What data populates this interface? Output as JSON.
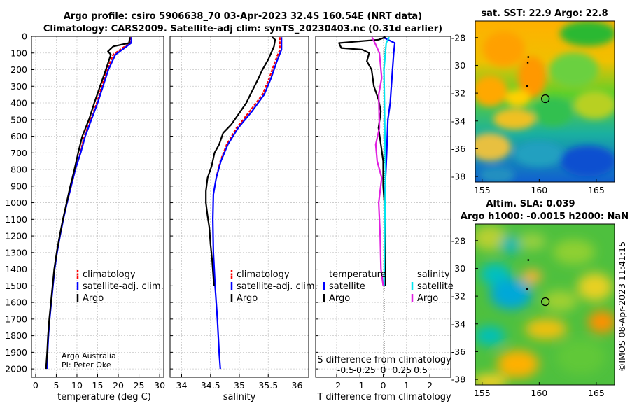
{
  "title_line1": "Argo profile: csiro 5906638_70 03-Apr-2023 32.4S 160.54E (NRT data)",
  "title_line2": "Climatology: CARS2009. Satellite-adj clim: synTS_20230403.nc (0.31d earlier)",
  "credit_line1": "Argo Australia",
  "credit_line2": "PI: Peter Oke",
  "watermark": "©IMOS 08-Apr-2023 11:41:15",
  "colors": {
    "argo": "#000000",
    "climatology": "#ff0000",
    "satellite": "#0000ff",
    "sat_salinity": "#00e5ee",
    "argo_salinity": "#e020e0",
    "zero_line": "#666666"
  },
  "chart_data": [
    {
      "id": "temperature",
      "type": "line",
      "xlabel": "temperature (deg C)",
      "ylabel": "",
      "xlim": [
        -1,
        31
      ],
      "ylim": [
        2050,
        0
      ],
      "xticks": [
        0,
        5,
        10,
        15,
        20,
        25,
        30
      ],
      "yticks": [
        0,
        100,
        200,
        300,
        400,
        500,
        600,
        700,
        800,
        900,
        1000,
        1100,
        1200,
        1300,
        1400,
        1500,
        1600,
        1700,
        1800,
        1900,
        2000
      ],
      "grid": true,
      "legend": [
        "climatology",
        "satellite-adj. clim.",
        "Argo"
      ],
      "series": [
        {
          "name": "climatology",
          "color": "#ff0000",
          "points": [
            [
              23.0,
              5
            ],
            [
              22.9,
              40
            ],
            [
              21.0,
              70
            ],
            [
              18.8,
              110
            ],
            [
              17.3,
              200
            ],
            [
              16.0,
              300
            ],
            [
              14.8,
              400
            ],
            [
              13.3,
              500
            ],
            [
              11.8,
              600
            ],
            [
              10.8,
              700
            ],
            [
              9.6,
              800
            ],
            [
              8.6,
              900
            ],
            [
              7.6,
              1000
            ]
          ]
        },
        {
          "name": "satellite-adj. clim.",
          "color": "#0000ff",
          "points": [
            [
              23.2,
              5
            ],
            [
              23.1,
              40
            ],
            [
              21.5,
              70
            ],
            [
              19.3,
              110
            ],
            [
              17.6,
              200
            ],
            [
              16.3,
              300
            ],
            [
              15.0,
              400
            ],
            [
              13.5,
              500
            ],
            [
              12.0,
              600
            ],
            [
              10.9,
              700
            ],
            [
              9.6,
              800
            ],
            [
              8.6,
              900
            ],
            [
              7.6,
              1000
            ],
            [
              6.7,
              1100
            ],
            [
              5.9,
              1200
            ],
            [
              5.2,
              1300
            ],
            [
              4.6,
              1400
            ],
            [
              4.2,
              1500
            ],
            [
              3.8,
              1600
            ],
            [
              3.4,
              1700
            ],
            [
              3.1,
              1800
            ],
            [
              2.9,
              1900
            ],
            [
              2.7,
              2000
            ]
          ]
        },
        {
          "name": "Argo",
          "color": "#000000",
          "points": [
            [
              22.8,
              5
            ],
            [
              22.6,
              40
            ],
            [
              18.8,
              60
            ],
            [
              17.5,
              90
            ],
            [
              18.2,
              110
            ],
            [
              17.0,
              200
            ],
            [
              15.6,
              300
            ],
            [
              14.2,
              400
            ],
            [
              12.9,
              500
            ],
            [
              11.3,
              600
            ],
            [
              10.3,
              700
            ],
            [
              9.4,
              800
            ],
            [
              8.4,
              900
            ],
            [
              7.5,
              1000
            ],
            [
              6.6,
              1100
            ],
            [
              5.8,
              1200
            ],
            [
              5.1,
              1300
            ],
            [
              4.5,
              1400
            ],
            [
              4.1,
              1500
            ],
            [
              3.7,
              1600
            ],
            [
              3.3,
              1700
            ],
            [
              3.0,
              1800
            ],
            [
              2.8,
              1900
            ],
            [
              2.5,
              2000
            ]
          ]
        }
      ],
      "annotations": [
        "Argo Australia",
        "PI: Peter Oke"
      ]
    },
    {
      "id": "salinity",
      "type": "line",
      "xlabel": "salinity",
      "ylabel": "",
      "xlim": [
        33.8,
        36.2
      ],
      "ylim": [
        2050,
        0
      ],
      "xticks": [
        34,
        34.5,
        35,
        35.5,
        36
      ],
      "grid": true,
      "legend": [
        "climatology",
        "satellite-adj. clim.",
        "Argo"
      ],
      "series": [
        {
          "name": "climatology",
          "color": "#ff0000",
          "points": [
            [
              35.7,
              5
            ],
            [
              35.7,
              80
            ],
            [
              35.62,
              150
            ],
            [
              35.52,
              250
            ],
            [
              35.4,
              350
            ],
            [
              35.18,
              450
            ],
            [
              34.95,
              550
            ],
            [
              34.78,
              650
            ],
            [
              34.67,
              750
            ],
            [
              34.6,
              850
            ]
          ]
        },
        {
          "name": "satellite-adj. clim.",
          "color": "#0000ff",
          "points": [
            [
              35.73,
              5
            ],
            [
              35.73,
              80
            ],
            [
              35.65,
              150
            ],
            [
              35.55,
              250
            ],
            [
              35.43,
              350
            ],
            [
              35.22,
              450
            ],
            [
              34.98,
              550
            ],
            [
              34.8,
              650
            ],
            [
              34.68,
              750
            ],
            [
              34.6,
              850
            ],
            [
              34.55,
              950
            ],
            [
              34.54,
              1100
            ],
            [
              34.55,
              1300
            ],
            [
              34.58,
              1500
            ],
            [
              34.62,
              1700
            ],
            [
              34.65,
              1900
            ],
            [
              34.67,
              2000
            ]
          ]
        },
        {
          "name": "Argo",
          "color": "#000000",
          "points": [
            [
              35.57,
              5
            ],
            [
              35.62,
              20
            ],
            [
              35.6,
              60
            ],
            [
              35.55,
              100
            ],
            [
              35.5,
              140
            ],
            [
              35.4,
              200
            ],
            [
              35.32,
              260
            ],
            [
              35.22,
              330
            ],
            [
              35.12,
              400
            ],
            [
              34.98,
              470
            ],
            [
              34.86,
              530
            ],
            [
              34.72,
              580
            ],
            [
              34.65,
              650
            ],
            [
              34.57,
              700
            ],
            [
              34.52,
              780
            ],
            [
              34.45,
              850
            ],
            [
              34.42,
              930
            ],
            [
              34.42,
              1000
            ],
            [
              34.45,
              1080
            ],
            [
              34.48,
              1150
            ],
            [
              34.5,
              1250
            ],
            [
              34.53,
              1350
            ],
            [
              34.55,
              1450
            ],
            [
              34.56,
              1500
            ]
          ]
        }
      ]
    },
    {
      "id": "difference",
      "type": "line",
      "xlabel": "T difference from climatology",
      "xlabel2": "S difference from climatology",
      "xlim": [
        -2.9,
        2.9
      ],
      "xlim2": [
        -0.9,
        0.9
      ],
      "ylim": [
        2050,
        0
      ],
      "xticks": [
        -2,
        -1,
        0,
        1,
        2
      ],
      "xticks2": [
        "-0.5",
        "-0.25",
        "0",
        "0.25",
        "0.5"
      ],
      "grid": true,
      "legend_title_left": "temperature",
      "legend_title_right": "salinity",
      "legend_left": [
        "satellite",
        "Argo"
      ],
      "legend_right": [
        "satellite",
        "Argo"
      ],
      "series": [
        {
          "name": "T satellite",
          "color": "#0000ff",
          "points": [
            [
              0.0,
              5
            ],
            [
              0.2,
              20
            ],
            [
              0.5,
              40
            ],
            [
              0.45,
              100
            ],
            [
              0.4,
              200
            ],
            [
              0.35,
              300
            ],
            [
              0.3,
              400
            ],
            [
              0.2,
              500
            ],
            [
              0.15,
              700
            ],
            [
              0.05,
              1000
            ],
            [
              0.05,
              1200
            ],
            [
              0.1,
              1400
            ],
            [
              0.1,
              1500
            ]
          ]
        },
        {
          "name": "T Argo",
          "color": "#000000",
          "points": [
            [
              0.1,
              5
            ],
            [
              -0.2,
              20
            ],
            [
              -1.9,
              40
            ],
            [
              -1.8,
              70
            ],
            [
              -0.9,
              80
            ],
            [
              -0.6,
              100
            ],
            [
              -0.7,
              150
            ],
            [
              -0.5,
              200
            ],
            [
              -0.4,
              300
            ],
            [
              -0.2,
              380
            ],
            [
              -0.1,
              450
            ],
            [
              -0.2,
              550
            ],
            [
              -0.1,
              650
            ],
            [
              0.0,
              750
            ],
            [
              0.0,
              900
            ],
            [
              0.1,
              1100
            ],
            [
              0.1,
              1300
            ],
            [
              0.1,
              1500
            ]
          ]
        },
        {
          "name": "S satellite",
          "color": "#00e5ee",
          "points": [
            [
              0.08,
              5
            ],
            [
              0.04,
              40
            ],
            [
              0.01,
              200
            ],
            [
              0.02,
              500
            ],
            [
              0.03,
              800
            ],
            [
              0.02,
              1200
            ],
            [
              0.01,
              1500
            ]
          ]
        },
        {
          "name": "S Argo",
          "color": "#e020e0",
          "points": [
            [
              -0.15,
              5
            ],
            [
              -0.11,
              40
            ],
            [
              -0.05,
              100
            ],
            [
              -0.02,
              250
            ],
            [
              -0.06,
              350
            ],
            [
              -0.05,
              550
            ],
            [
              -0.1,
              650
            ],
            [
              -0.08,
              750
            ],
            [
              -0.02,
              850
            ],
            [
              -0.06,
              1000
            ],
            [
              -0.04,
              1200
            ],
            [
              -0.03,
              1400
            ],
            [
              0.0,
              1500
            ]
          ]
        }
      ]
    },
    {
      "id": "sst_map",
      "type": "heatmap",
      "title": "sat. SST: 22.9 Argo: 22.8",
      "xticks": [
        155,
        160,
        165
      ],
      "yticks": [
        -28,
        -30,
        -32,
        -34,
        -36,
        -38
      ],
      "xlim": [
        154.4,
        166.6
      ],
      "ylim": [
        -38.4,
        -26.8
      ],
      "argo_position": [
        160.54,
        -32.4
      ],
      "track": [
        [
          159.05,
          -29.4
        ],
        [
          159.0,
          -29.8
        ],
        [
          158.95,
          -31.5
        ]
      ]
    },
    {
      "id": "sla_map",
      "type": "heatmap",
      "title_line1": "Altim. SLA: 0.039",
      "title_line2": "Argo h1000: -0.0015 h2000: NaN",
      "xticks": [
        155,
        160,
        165
      ],
      "yticks": [
        -28,
        -30,
        -32,
        -34,
        -36,
        -38
      ],
      "xlim": [
        154.4,
        166.6
      ],
      "ylim": [
        -38.4,
        -26.8
      ],
      "argo_position": [
        160.54,
        -32.4
      ],
      "track": [
        [
          159.05,
          -29.4
        ],
        [
          158.95,
          -31.5
        ]
      ]
    }
  ]
}
